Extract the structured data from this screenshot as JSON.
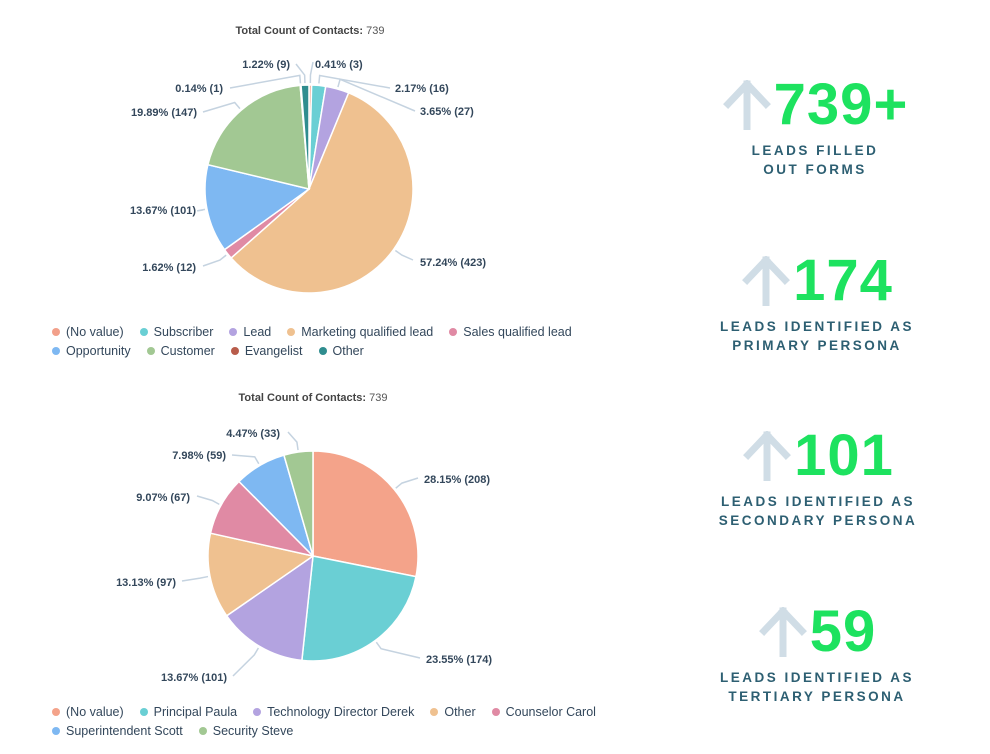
{
  "chart_data": [
    {
      "type": "pie",
      "title_label": "Total Count of Contacts:",
      "title_value": "739",
      "slices": [
        {
          "name": "(No value)",
          "value": 3,
          "pct": "0.41%",
          "label": "0.41% (3)",
          "color": "#f2a08a"
        },
        {
          "name": "Subscriber",
          "value": 16,
          "pct": "2.17%",
          "label": "2.17% (16)",
          "color": "#6acfd4"
        },
        {
          "name": "Lead",
          "value": 27,
          "pct": "3.65%",
          "label": "3.65% (27)",
          "color": "#b3a3e0"
        },
        {
          "name": "Marketing qualified lead",
          "value": 423,
          "pct": "57.24%",
          "label": "57.24% (423)",
          "color": "#efc190"
        },
        {
          "name": "Sales qualified lead",
          "value": 12,
          "pct": "1.62%",
          "label": "1.62% (12)",
          "color": "#e08aa4"
        },
        {
          "name": "Opportunity",
          "value": 101,
          "pct": "13.67%",
          "label": "13.67% (101)",
          "color": "#7eb8f2"
        },
        {
          "name": "Customer",
          "value": 147,
          "pct": "19.89%",
          "label": "19.89% (147)",
          "color": "#a2c893"
        },
        {
          "name": "Evangelist",
          "value": 1,
          "pct": "0.14%",
          "label": "0.14% (1)",
          "color": "#b85c4b"
        },
        {
          "name": "Other",
          "value": 9,
          "pct": "1.22%",
          "label": "1.22% (9)",
          "color": "#2f8d8f"
        }
      ],
      "legend_placement": "bottom"
    },
    {
      "type": "pie",
      "title_label": "Total Count of Contacts:",
      "title_value": "739",
      "slices": [
        {
          "name": "(No value)",
          "value": 208,
          "pct": "28.15%",
          "label": "28.15% (208)",
          "color": "#f4a38a"
        },
        {
          "name": "Principal Paula",
          "value": 174,
          "pct": "23.55%",
          "label": "23.55% (174)",
          "color": "#6acfd4"
        },
        {
          "name": "Technology Director Derek",
          "value": 101,
          "pct": "13.67%",
          "label": "13.67% (101)",
          "color": "#b3a3e0"
        },
        {
          "name": "Other",
          "value": 97,
          "pct": "13.13%",
          "label": "13.13% (97)",
          "color": "#efc190"
        },
        {
          "name": "Counselor Carol",
          "value": 67,
          "pct": "9.07%",
          "label": "9.07% (67)",
          "color": "#e08aa4"
        },
        {
          "name": "Superintendent Scott",
          "value": 59,
          "pct": "7.98%",
          "label": "7.98% (59)",
          "color": "#7eb8f2"
        },
        {
          "name": "Security Steve",
          "value": 33,
          "pct": "4.47%",
          "label": "4.47% (33)",
          "color": "#a2c893"
        }
      ],
      "legend_placement": "bottom"
    }
  ],
  "stats": [
    {
      "number": "739+",
      "caption_line1": "LEADS FILLED",
      "caption_line2": "OUT FORMS",
      "icon": "arrow-up-icon"
    },
    {
      "number": "174",
      "caption_line1": "LEADS IDENTIFIED AS",
      "caption_line2": "PRIMARY PERSONA",
      "icon": "arrow-up-icon"
    },
    {
      "number": "101",
      "caption_line1": "LEADS IDENTIFIED AS",
      "caption_line2": "SECONDARY PERSONA",
      "icon": "arrow-up-icon"
    },
    {
      "number": "59",
      "caption_line1": "LEADS IDENTIFIED AS",
      "caption_line2": "TERTIARY PERSONA",
      "icon": "arrow-up-icon"
    }
  ],
  "colors": {
    "stat_number": "#1de25f",
    "stat_caption": "#2d5f72",
    "arrow": "#d0dde6",
    "leader_line": "#c5d3e0"
  }
}
